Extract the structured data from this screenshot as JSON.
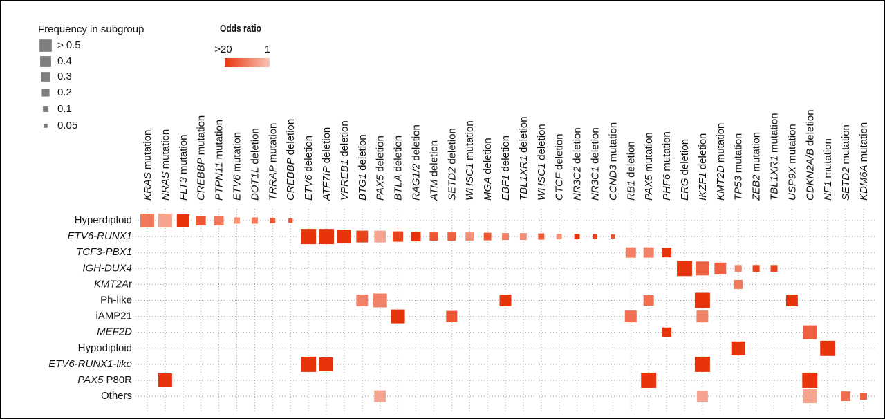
{
  "chart_data": {
    "type": "matrix",
    "size_legend_title": "Frequency in subgroup",
    "size_legend": [
      {
        "value": 0.5,
        "label": "> 0.5"
      },
      0.4,
      0.3,
      0.2,
      0.1,
      0.05
    ],
    "color_legend_title": "Odds ratio",
    "color_legend": [
      {
        "value": 20,
        "label": ">20"
      },
      1
    ],
    "color_high": "#e8340c",
    "color_low": "#f9c6b6",
    "grid": true,
    "columns": [
      {
        "gene": "KRAS",
        "event": "mutation"
      },
      {
        "gene": "NRAS",
        "event": "mutation"
      },
      {
        "gene": "FLT3",
        "event": "mutation"
      },
      {
        "gene": "CREBBP",
        "event": "mutation"
      },
      {
        "gene": "PTPN11",
        "event": "mutation"
      },
      {
        "gene": "ETV6",
        "event": "mutation"
      },
      {
        "gene": "DOT1L",
        "event": "deletion"
      },
      {
        "gene": "TRRAP",
        "event": "mutation"
      },
      {
        "gene": "CREBBP",
        "event": "deletion"
      },
      {
        "gene": "ETV6",
        "event": "deletion"
      },
      {
        "gene": "ATF7IP",
        "event": "deletion"
      },
      {
        "gene": "VPREB1",
        "event": "deletion"
      },
      {
        "gene": "BTG1",
        "event": "deletion"
      },
      {
        "gene": "PAX5",
        "event": "deletion"
      },
      {
        "gene": "BTLA",
        "event": "deletion"
      },
      {
        "gene": "RAG1/2",
        "event": "deletion"
      },
      {
        "gene": "ATM",
        "event": "deletion"
      },
      {
        "gene": "SETD2",
        "event": "deletion"
      },
      {
        "gene": "WHSC1",
        "event": "mutation"
      },
      {
        "gene": "MGA",
        "event": "deletion"
      },
      {
        "gene": "EBF1",
        "event": "deletion"
      },
      {
        "gene": "TBL1XR1",
        "event": "deletion"
      },
      {
        "gene": "WHSC1",
        "event": "deletion"
      },
      {
        "gene": "CTCF",
        "event": "deletion"
      },
      {
        "gene": "NR3C2",
        "event": "deletion"
      },
      {
        "gene": "NR3C1",
        "event": "deletion"
      },
      {
        "gene": "CCND3",
        "event": "mutation"
      },
      {
        "gene": "RB1",
        "event": "deletion"
      },
      {
        "gene": "PAX5",
        "event": "mutation"
      },
      {
        "gene": "PHF6",
        "event": "mutation"
      },
      {
        "gene": "ERG",
        "event": "deletion"
      },
      {
        "gene": "IKZF1",
        "event": "deletion"
      },
      {
        "gene": "KMT2D",
        "event": "mutation"
      },
      {
        "gene": "TP53",
        "event": "mutation"
      },
      {
        "gene": "ZEB2",
        "event": "mutation"
      },
      {
        "gene": "TBL1XR1",
        "event": "mutation"
      },
      {
        "gene": "USP9X",
        "event": "mutation"
      },
      {
        "gene": "CDKN2A/B",
        "event": "deletion"
      },
      {
        "gene": "NF1",
        "event": "mutation"
      },
      {
        "gene": "SETD2",
        "event": "mutation"
      },
      {
        "gene": "KDM6A",
        "event": "mutation"
      }
    ],
    "rows": [
      [
        {
          "text": "Hyperdiploid"
        }
      ],
      [
        {
          "text": "ETV6-RUNX1",
          "italic": true
        }
      ],
      [
        {
          "text": "TCF3-PBX1",
          "italic": true
        }
      ],
      [
        {
          "text": "IGH-DUX4",
          "italic": true
        }
      ],
      [
        {
          "text": "KMT2A",
          "italic": true
        },
        {
          "text": "r"
        }
      ],
      [
        {
          "text": "Ph-like"
        }
      ],
      [
        {
          "text": "iAMP21"
        }
      ],
      [
        {
          "text": "MEF2D",
          "italic": true
        }
      ],
      [
        {
          "text": "Hypodiploid"
        }
      ],
      [
        {
          "text": "ETV6-RUNX1-like",
          "italic": true
        }
      ],
      [
        {
          "text": "PAX5",
          "italic": true
        },
        {
          "text": "P80R",
          "space": true
        }
      ],
      [
        {
          "text": "Others"
        }
      ]
    ],
    "cells": [
      {
        "row": 0,
        "col": 0,
        "frequency": 0.64,
        "odds_ratio": 5
      },
      {
        "row": 0,
        "col": 1,
        "frequency": 0.64,
        "odds_ratio": 2
      },
      {
        "row": 0,
        "col": 2,
        "frequency": 0.52,
        "odds_ratio": 20
      },
      {
        "row": 0,
        "col": 3,
        "frequency": 0.31,
        "odds_ratio": 10
      },
      {
        "row": 0,
        "col": 4,
        "frequency": 0.31,
        "odds_ratio": 5
      },
      {
        "row": 0,
        "col": 5,
        "frequency": 0.13,
        "odds_ratio": 3
      },
      {
        "row": 0,
        "col": 6,
        "frequency": 0.13,
        "odds_ratio": 5
      },
      {
        "row": 0,
        "col": 7,
        "frequency": 0.1,
        "odds_ratio": 10
      },
      {
        "row": 0,
        "col": 8,
        "frequency": 0.06,
        "odds_ratio": 10
      },
      {
        "row": 1,
        "col": 9,
        "frequency": 0.77,
        "odds_ratio": 20
      },
      {
        "row": 1,
        "col": 10,
        "frequency": 0.77,
        "odds_ratio": 20
      },
      {
        "row": 1,
        "col": 11,
        "frequency": 0.64,
        "odds_ratio": 20
      },
      {
        "row": 1,
        "col": 12,
        "frequency": 0.46,
        "odds_ratio": 15
      },
      {
        "row": 1,
        "col": 13,
        "frequency": 0.46,
        "odds_ratio": 2
      },
      {
        "row": 1,
        "col": 14,
        "frequency": 0.36,
        "odds_ratio": 15
      },
      {
        "row": 1,
        "col": 15,
        "frequency": 0.31,
        "odds_ratio": 20
      },
      {
        "row": 1,
        "col": 16,
        "frequency": 0.23,
        "odds_ratio": 10
      },
      {
        "row": 1,
        "col": 17,
        "frequency": 0.23,
        "odds_ratio": 8
      },
      {
        "row": 1,
        "col": 18,
        "frequency": 0.23,
        "odds_ratio": 3
      },
      {
        "row": 1,
        "col": 19,
        "frequency": 0.19,
        "odds_ratio": 10
      },
      {
        "row": 1,
        "col": 20,
        "frequency": 0.16,
        "odds_ratio": 4
      },
      {
        "row": 1,
        "col": 21,
        "frequency": 0.16,
        "odds_ratio": 3
      },
      {
        "row": 1,
        "col": 22,
        "frequency": 0.13,
        "odds_ratio": 8
      },
      {
        "row": 1,
        "col": 23,
        "frequency": 0.1,
        "odds_ratio": 3
      },
      {
        "row": 1,
        "col": 24,
        "frequency": 0.1,
        "odds_ratio": 20
      },
      {
        "row": 1,
        "col": 25,
        "frequency": 0.08,
        "odds_ratio": 15
      },
      {
        "row": 1,
        "col": 26,
        "frequency": 0.06,
        "odds_ratio": 10
      },
      {
        "row": 2,
        "col": 27,
        "frequency": 0.36,
        "odds_ratio": 4
      },
      {
        "row": 2,
        "col": 28,
        "frequency": 0.36,
        "odds_ratio": 4
      },
      {
        "row": 2,
        "col": 29,
        "frequency": 0.31,
        "odds_ratio": 20
      },
      {
        "row": 3,
        "col": 30,
        "frequency": 0.77,
        "odds_ratio": 20
      },
      {
        "row": 3,
        "col": 31,
        "frequency": 0.64,
        "odds_ratio": 8
      },
      {
        "row": 3,
        "col": 32,
        "frequency": 0.46,
        "odds_ratio": 8
      },
      {
        "row": 3,
        "col": 33,
        "frequency": 0.16,
        "odds_ratio": 4
      },
      {
        "row": 3,
        "col": 34,
        "frequency": 0.16,
        "odds_ratio": 15
      },
      {
        "row": 3,
        "col": 35,
        "frequency": 0.16,
        "odds_ratio": 15
      },
      {
        "row": 4,
        "col": 33,
        "frequency": 0.27,
        "odds_ratio": 5
      },
      {
        "row": 5,
        "col": 12,
        "frequency": 0.46,
        "odds_ratio": 4
      },
      {
        "row": 5,
        "col": 13,
        "frequency": 0.64,
        "odds_ratio": 4
      },
      {
        "row": 5,
        "col": 20,
        "frequency": 0.46,
        "odds_ratio": 20
      },
      {
        "row": 5,
        "col": 28,
        "frequency": 0.36,
        "odds_ratio": 6
      },
      {
        "row": 5,
        "col": 31,
        "frequency": 0.77,
        "odds_ratio": 20
      },
      {
        "row": 5,
        "col": 36,
        "frequency": 0.46,
        "odds_ratio": 20
      },
      {
        "row": 6,
        "col": 14,
        "frequency": 0.64,
        "odds_ratio": 20
      },
      {
        "row": 6,
        "col": 17,
        "frequency": 0.41,
        "odds_ratio": 10
      },
      {
        "row": 6,
        "col": 27,
        "frequency": 0.46,
        "odds_ratio": 6
      },
      {
        "row": 6,
        "col": 31,
        "frequency": 0.46,
        "odds_ratio": 4
      },
      {
        "row": 7,
        "col": 29,
        "frequency": 0.31,
        "odds_ratio": 20
      },
      {
        "row": 7,
        "col": 37,
        "frequency": 0.64,
        "odds_ratio": 8
      },
      {
        "row": 8,
        "col": 33,
        "frequency": 0.64,
        "odds_ratio": 20
      },
      {
        "row": 8,
        "col": 38,
        "frequency": 0.77,
        "odds_ratio": 20
      },
      {
        "row": 9,
        "col": 9,
        "frequency": 0.77,
        "odds_ratio": 20
      },
      {
        "row": 9,
        "col": 10,
        "frequency": 0.64,
        "odds_ratio": 20
      },
      {
        "row": 9,
        "col": 31,
        "frequency": 0.77,
        "odds_ratio": 20
      },
      {
        "row": 10,
        "col": 1,
        "frequency": 0.64,
        "odds_ratio": 20
      },
      {
        "row": 10,
        "col": 28,
        "frequency": 0.77,
        "odds_ratio": 20
      },
      {
        "row": 10,
        "col": 37,
        "frequency": 0.77,
        "odds_ratio": 20
      },
      {
        "row": 11,
        "col": 13,
        "frequency": 0.46,
        "odds_ratio": 2
      },
      {
        "row": 11,
        "col": 31,
        "frequency": 0.41,
        "odds_ratio": 2
      },
      {
        "row": 11,
        "col": 37,
        "frequency": 0.64,
        "odds_ratio": 2
      },
      {
        "row": 11,
        "col": 39,
        "frequency": 0.31,
        "odds_ratio": 6
      },
      {
        "row": 11,
        "col": 40,
        "frequency": 0.16,
        "odds_ratio": 8
      }
    ]
  }
}
